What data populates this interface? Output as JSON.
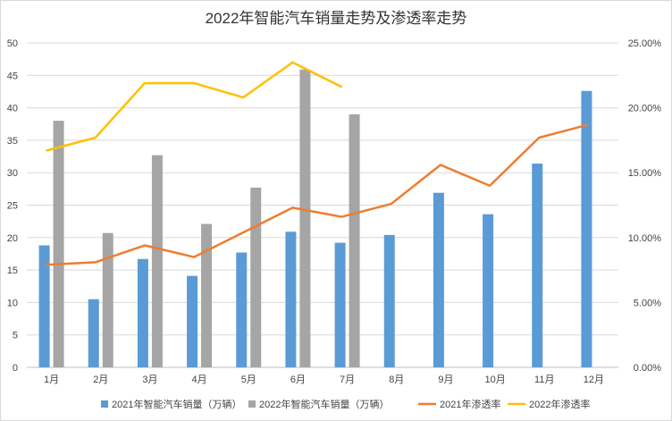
{
  "chart_data": {
    "type": "bar+line",
    "title": "2022年智能汽车销量走势及渗透率走势",
    "categories": [
      "1月",
      "2月",
      "3月",
      "4月",
      "5月",
      "6月",
      "7月",
      "8月",
      "9月",
      "10月",
      "11月",
      "12月"
    ],
    "y_left": {
      "range": [
        0,
        50
      ],
      "ticks": [
        "0",
        "5",
        "10",
        "15",
        "20",
        "25",
        "30",
        "35",
        "40",
        "45",
        "50"
      ]
    },
    "y_right": {
      "range": [
        0,
        25
      ],
      "ticks": [
        "0.00%",
        "5.00%",
        "10.00%",
        "15.00%",
        "20.00%",
        "25.00%"
      ]
    },
    "grid": true,
    "legend_position": "bottom",
    "series": [
      {
        "name": "2021年智能汽车销量（万辆）",
        "type": "bar",
        "axis": "left",
        "color": "#5b9bd5",
        "values": [
          18.8,
          10.5,
          16.7,
          14.1,
          17.7,
          20.9,
          19.2,
          20.4,
          26.9,
          23.6,
          31.4,
          42.6
        ]
      },
      {
        "name": "2022年智能汽车销量（万辆）",
        "type": "bar",
        "axis": "left",
        "color": "#a5a5a5",
        "values": [
          38.0,
          20.7,
          32.7,
          22.1,
          27.7,
          45.9,
          39.0,
          null,
          null,
          null,
          null,
          null
        ]
      },
      {
        "name": "2021年渗透率",
        "type": "line",
        "axis": "right",
        "color": "#ed7d31",
        "values": [
          7.9,
          8.1,
          9.4,
          8.5,
          10.4,
          12.3,
          11.6,
          12.6,
          15.6,
          14.0,
          17.7,
          18.7
        ]
      },
      {
        "name": "2022年渗透率",
        "type": "line",
        "axis": "right",
        "color": "#ffc000",
        "values": [
          16.7,
          17.7,
          21.9,
          21.9,
          20.8,
          23.5,
          21.6,
          null,
          null,
          null,
          null,
          null
        ]
      }
    ]
  }
}
